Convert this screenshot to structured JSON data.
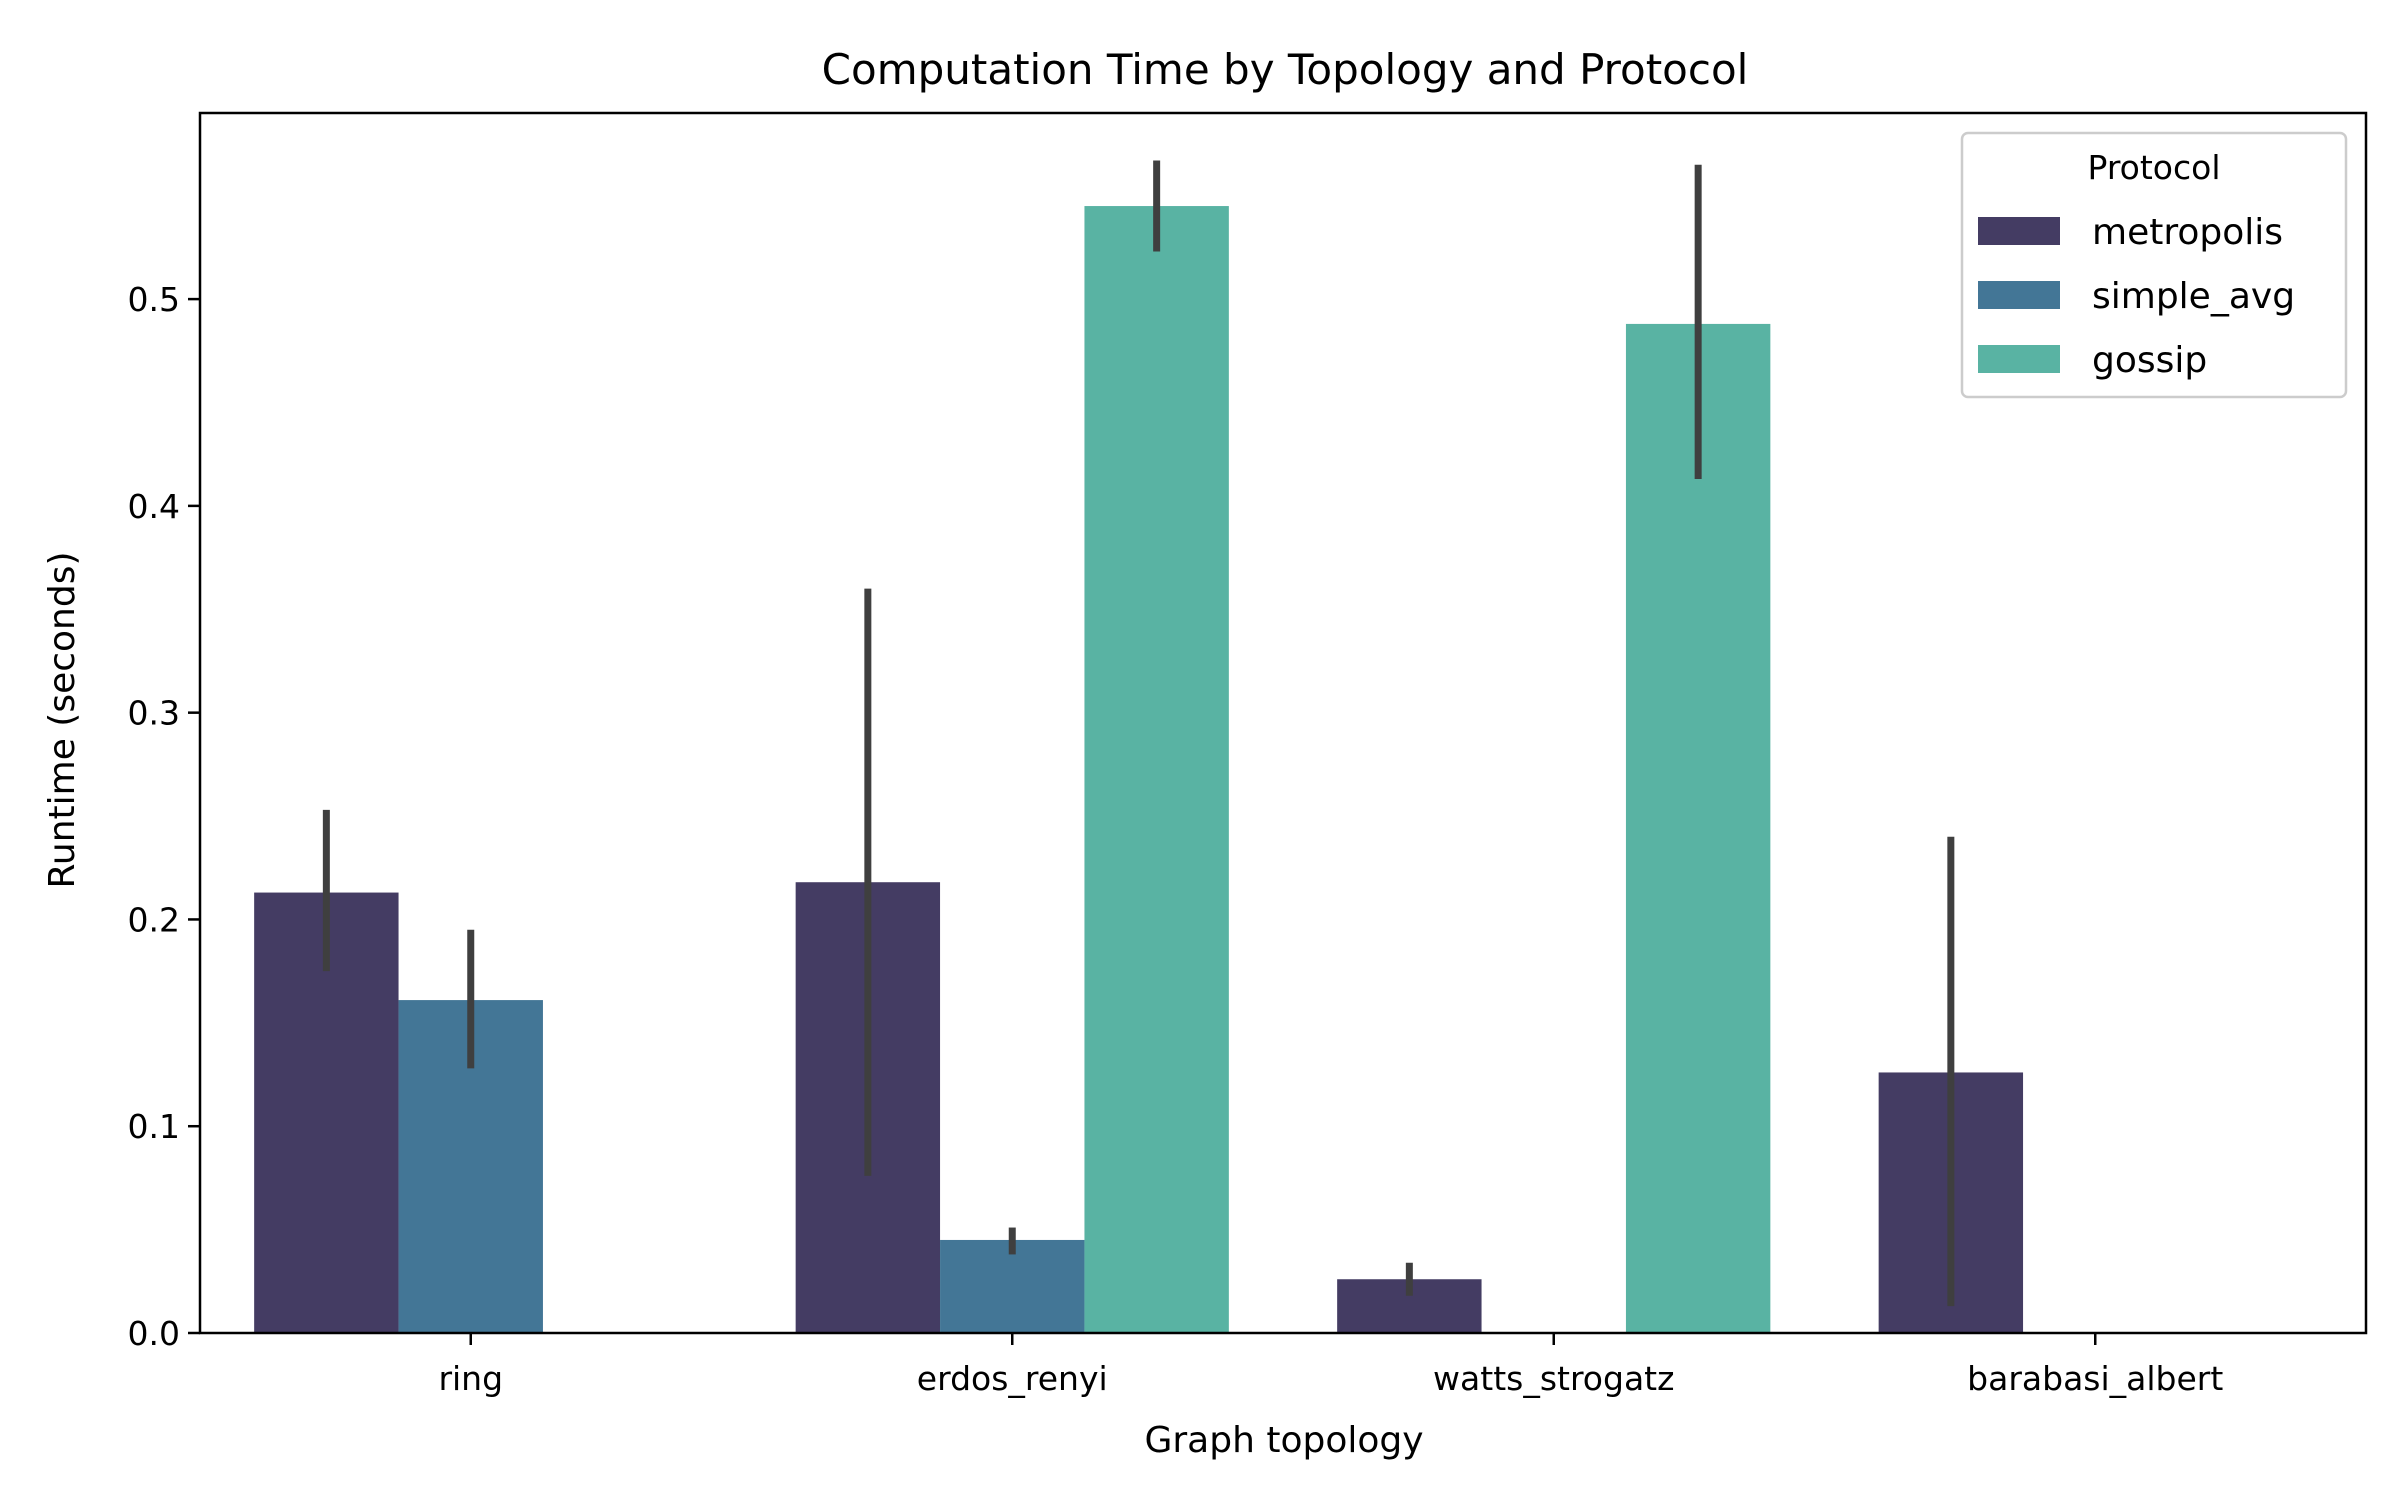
{
  "chart_data": {
    "type": "bar",
    "title": "Computation Time by Topology and Protocol",
    "xlabel": "Graph topology",
    "ylabel": "Runtime (seconds)",
    "categories": [
      "ring",
      "erdos_renyi",
      "watts_strogatz",
      "barabasi_albert"
    ],
    "ylim": [
      0,
      0.59
    ],
    "yticks": [
      0.0,
      0.1,
      0.2,
      0.3,
      0.4,
      0.5
    ],
    "ytick_labels": [
      "0.0",
      "0.1",
      "0.2",
      "0.3",
      "0.4",
      "0.5"
    ],
    "grid": false,
    "legend": {
      "title": "Protocol",
      "position": "top-right"
    },
    "series": [
      {
        "name": "metropolis",
        "color": "#443c63",
        "values": [
          0.213,
          0.218,
          0.026,
          0.126
        ],
        "error_low": [
          0.175,
          0.076,
          0.018,
          0.013
        ],
        "error_high": [
          0.253,
          0.36,
          0.034,
          0.24
        ]
      },
      {
        "name": "simple_avg",
        "color": "#437696",
        "values": [
          0.161,
          0.045,
          null,
          null
        ],
        "error_low": [
          0.128,
          0.038,
          null,
          null
        ],
        "error_high": [
          0.195,
          0.051,
          null,
          null
        ]
      },
      {
        "name": "gossip",
        "color": "#59b3a3",
        "values": [
          null,
          0.545,
          0.488,
          null
        ],
        "error_low": [
          null,
          0.523,
          0.413,
          null
        ],
        "error_high": [
          null,
          0.567,
          0.565,
          null
        ]
      }
    ],
    "error_bar_color": "#3f3f3f"
  }
}
